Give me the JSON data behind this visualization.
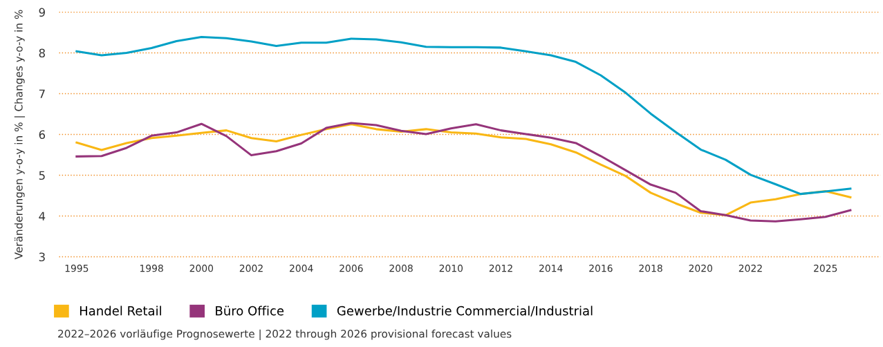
{
  "chart_data": {
    "type": "line",
    "ylabel": "Veränderungen y-o-y in % | Changes y-o-y in %",
    "x": [
      1995,
      1996,
      1997,
      1998,
      1999,
      2000,
      2001,
      2002,
      2003,
      2004,
      2005,
      2006,
      2007,
      2008,
      2009,
      2010,
      2011,
      2012,
      2013,
      2014,
      2015,
      2016,
      2017,
      2018,
      2019,
      2020,
      2021,
      2022,
      2023,
      2024,
      2025,
      2026
    ],
    "series": [
      {
        "name": "Handel Retail",
        "color": "#f9b714",
        "values": [
          5.8,
          5.62,
          5.79,
          5.91,
          5.97,
          6.04,
          6.1,
          5.91,
          5.83,
          5.99,
          6.13,
          6.25,
          6.13,
          6.07,
          6.13,
          6.05,
          6.02,
          5.93,
          5.89,
          5.76,
          5.56,
          5.26,
          4.98,
          4.57,
          4.31,
          4.08,
          4.02,
          4.33,
          4.41,
          4.54,
          4.61,
          4.46
        ]
      },
      {
        "name": "Büro Office",
        "color": "#95347a",
        "values": [
          5.46,
          5.47,
          5.67,
          5.97,
          6.05,
          6.26,
          5.96,
          5.49,
          5.59,
          5.78,
          6.16,
          6.28,
          6.23,
          6.09,
          6.01,
          6.15,
          6.25,
          6.1,
          6.01,
          5.92,
          5.79,
          5.47,
          5.12,
          4.77,
          4.57,
          4.12,
          4.02,
          3.89,
          3.87,
          3.92,
          3.98,
          4.14
        ]
      },
      {
        "name": "Gewerbe/Industrie Commercial/Industrial",
        "color": "#00a0c6",
        "values": [
          8.04,
          7.94,
          8.0,
          8.12,
          8.29,
          8.39,
          8.36,
          8.28,
          8.17,
          8.25,
          8.25,
          8.35,
          8.33,
          8.26,
          8.15,
          8.14,
          8.14,
          8.13,
          8.04,
          7.94,
          7.78,
          7.45,
          7.02,
          6.51,
          6.06,
          5.63,
          5.38,
          5.01,
          4.78,
          4.54,
          4.6,
          4.67
        ]
      }
    ],
    "xlim": [
      1994.3,
      2027.2
    ],
    "xticks": [
      1995,
      1998,
      2000,
      2002,
      2004,
      2006,
      2008,
      2010,
      2012,
      2014,
      2016,
      2018,
      2020,
      2022,
      2025
    ],
    "ylim": [
      3,
      9
    ],
    "yticks": [
      3,
      4,
      5,
      6,
      7,
      8,
      9
    ],
    "grid": "y",
    "legend": "bottom left",
    "marker": "none",
    "line_style": "solid",
    "annotations": [
      "2022–2026 vorläufige Prognosewerte | 2022 through 2026 provisional forecast values"
    ]
  }
}
